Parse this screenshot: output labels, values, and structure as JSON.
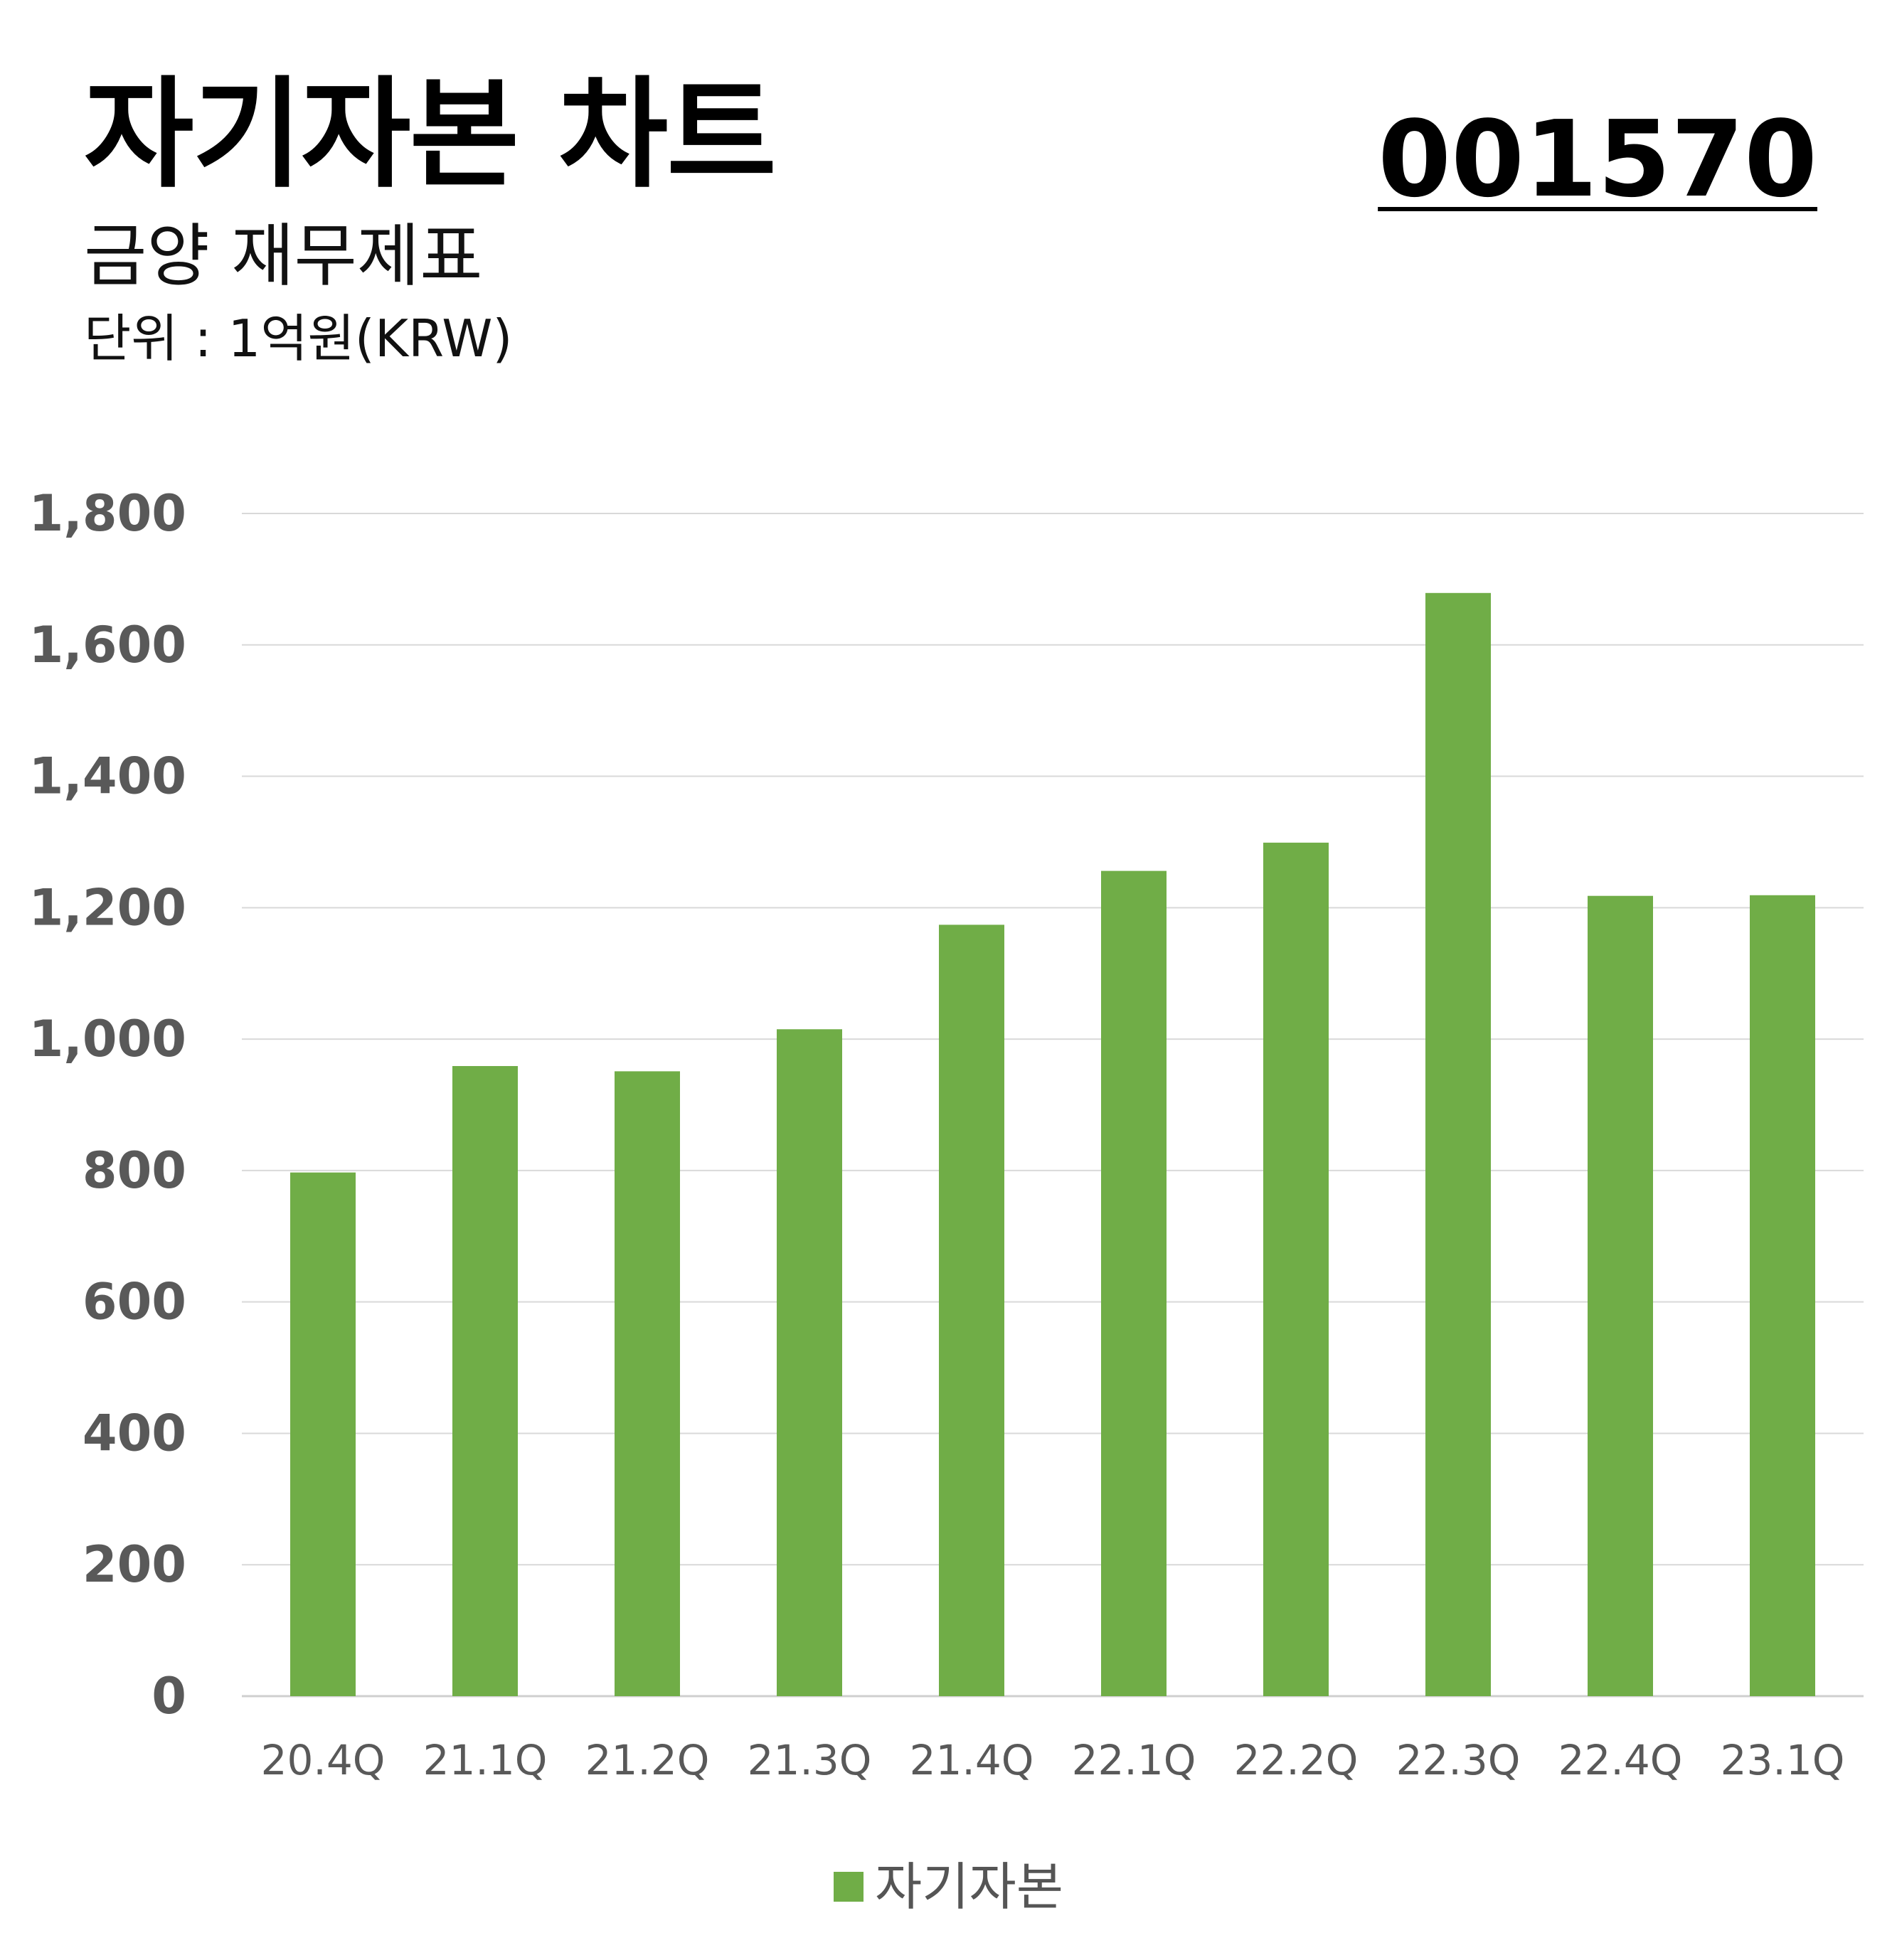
{
  "header": {
    "title": "자기자본 차트",
    "code": "001570",
    "subtitle": "금양 재무제표",
    "unit": "단위 : 1억원(KRW)"
  },
  "colors": {
    "bar": "#70ad47",
    "grid": "#d9d9d9",
    "tick_text": "#595959",
    "title_text": "#000000"
  },
  "chart_data": {
    "type": "bar",
    "title": "자기자본 차트",
    "categories": [
      "20.4Q",
      "21.1Q",
      "21.2Q",
      "21.3Q",
      "21.4Q",
      "22.1Q",
      "22.2Q",
      "22.3Q",
      "22.4Q",
      "23.1Q"
    ],
    "series": [
      {
        "name": "자기자본",
        "values": [
          797,
          959,
          951,
          1015,
          1174,
          1256,
          1299,
          1679,
          1218,
          1219
        ]
      }
    ],
    "y_ticks": [
      "0",
      "200",
      "400",
      "600",
      "800",
      "1,000",
      "1,200",
      "1,400",
      "1,600",
      "1,800"
    ],
    "ylim": [
      0,
      1800
    ],
    "grid": true,
    "legend_position": "bottom-center"
  },
  "legend": {
    "label": "자기자본"
  }
}
